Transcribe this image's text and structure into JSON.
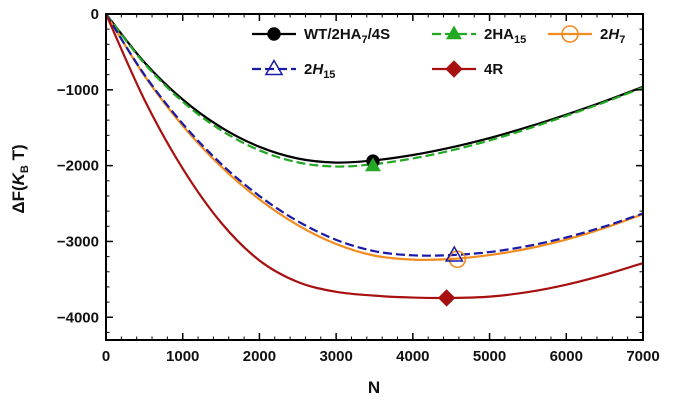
{
  "chart_data": {
    "type": "line",
    "xlabel": "N",
    "ylabel": {
      "main": "ΔF(",
      "sym": "K",
      "sub": "B",
      "tail": " T)"
    },
    "xlim": [
      0,
      7000
    ],
    "ylim": [
      -4300,
      0
    ],
    "xticks": [
      0,
      1000,
      2000,
      3000,
      4000,
      5000,
      6000,
      7000
    ],
    "yticks": [
      0,
      -1000,
      -2000,
      -3000,
      -4000
    ],
    "ytick_labels": [
      "0",
      "−1000",
      "−2000",
      "−3000",
      "−4000"
    ],
    "grid": false,
    "legend": "top-right",
    "series": [
      {
        "name": "WT/2HA/4S",
        "legend_label": {
          "main": "WT/2HA",
          "sub": "7",
          "tail": "/4S"
        },
        "color": "#000000",
        "dash": "solid",
        "marker": "filled-circle",
        "x": [
          0,
          500,
          1000,
          1500,
          2000,
          2500,
          3000,
          3500,
          4000,
          4500,
          5000,
          5500,
          6000,
          6500,
          7000
        ],
        "y": [
          0,
          -636,
          -1128,
          -1495,
          -1752,
          -1906,
          -1960,
          -1930,
          -1860,
          -1760,
          -1636,
          -1490,
          -1327,
          -1151,
          -960
        ],
        "marker_point": [
          3480,
          -1940
        ]
      },
      {
        "name": "2HA",
        "legend_label": {
          "main": "2HA",
          "sub": "15",
          "tail": ""
        },
        "color": "#22a822",
        "dash": "dashed",
        "marker": "filled-triangle",
        "x": [
          0,
          500,
          1000,
          1500,
          2000,
          2500,
          3000,
          3500,
          4000,
          4500,
          5000,
          5500,
          6000,
          6500,
          7000
        ],
        "y": [
          0,
          -652,
          -1157,
          -1533,
          -1798,
          -1957,
          -2012,
          -1980,
          -1905,
          -1800,
          -1668,
          -1513,
          -1343,
          -1163,
          -970
        ],
        "marker_point": [
          3480,
          -2005
        ]
      },
      {
        "name": "2H",
        "legend_label": {
          "main": "2",
          "ital": "H",
          "sub": "7",
          "tail": ""
        },
        "color": "#f28c1e",
        "dash": "solid",
        "marker": "open-circle",
        "x": [
          0,
          500,
          1000,
          1500,
          2000,
          2500,
          3000,
          3500,
          4000,
          4500,
          5000,
          5500,
          6000,
          6500,
          7000
        ],
        "y": [
          0,
          -813,
          -1474,
          -2012,
          -2445,
          -2785,
          -3034,
          -3187,
          -3240,
          -3232,
          -3180,
          -3095,
          -2975,
          -2822,
          -2640
        ],
        "marker_point": [
          4580,
          -3235
        ]
      },
      {
        "name": "2H",
        "legend_label": {
          "main": "2",
          "ital": "H",
          "sub": "15",
          "tail": ""
        },
        "color": "#1a1aa8",
        "dash": "dashed",
        "marker": "open-triangle",
        "x": [
          0,
          500,
          1000,
          1500,
          2000,
          2500,
          3000,
          3500,
          4000,
          4500,
          5000,
          5500,
          6000,
          6500,
          7000
        ],
        "y": [
          0,
          -800,
          -1448,
          -1976,
          -2400,
          -2733,
          -2979,
          -3128,
          -3183,
          -3180,
          -3140,
          -3060,
          -2947,
          -2802,
          -2630
        ],
        "marker_point": [
          4540,
          -3185
        ]
      },
      {
        "name": "4R",
        "legend_label": {
          "main": "4R",
          "sub": "",
          "tail": ""
        },
        "color": "#a81010",
        "dash": "solid",
        "marker": "filled-diamond",
        "x": [
          0,
          500,
          1000,
          1500,
          2000,
          2500,
          3000,
          3500,
          4000,
          4500,
          5000,
          5500,
          6000,
          6500,
          7000
        ],
        "y": [
          0,
          -1129,
          -2039,
          -2752,
          -3251,
          -3535,
          -3664,
          -3715,
          -3740,
          -3745,
          -3728,
          -3668,
          -3570,
          -3440,
          -3285
        ],
        "marker_point": [
          4440,
          -3745
        ]
      }
    ]
  }
}
